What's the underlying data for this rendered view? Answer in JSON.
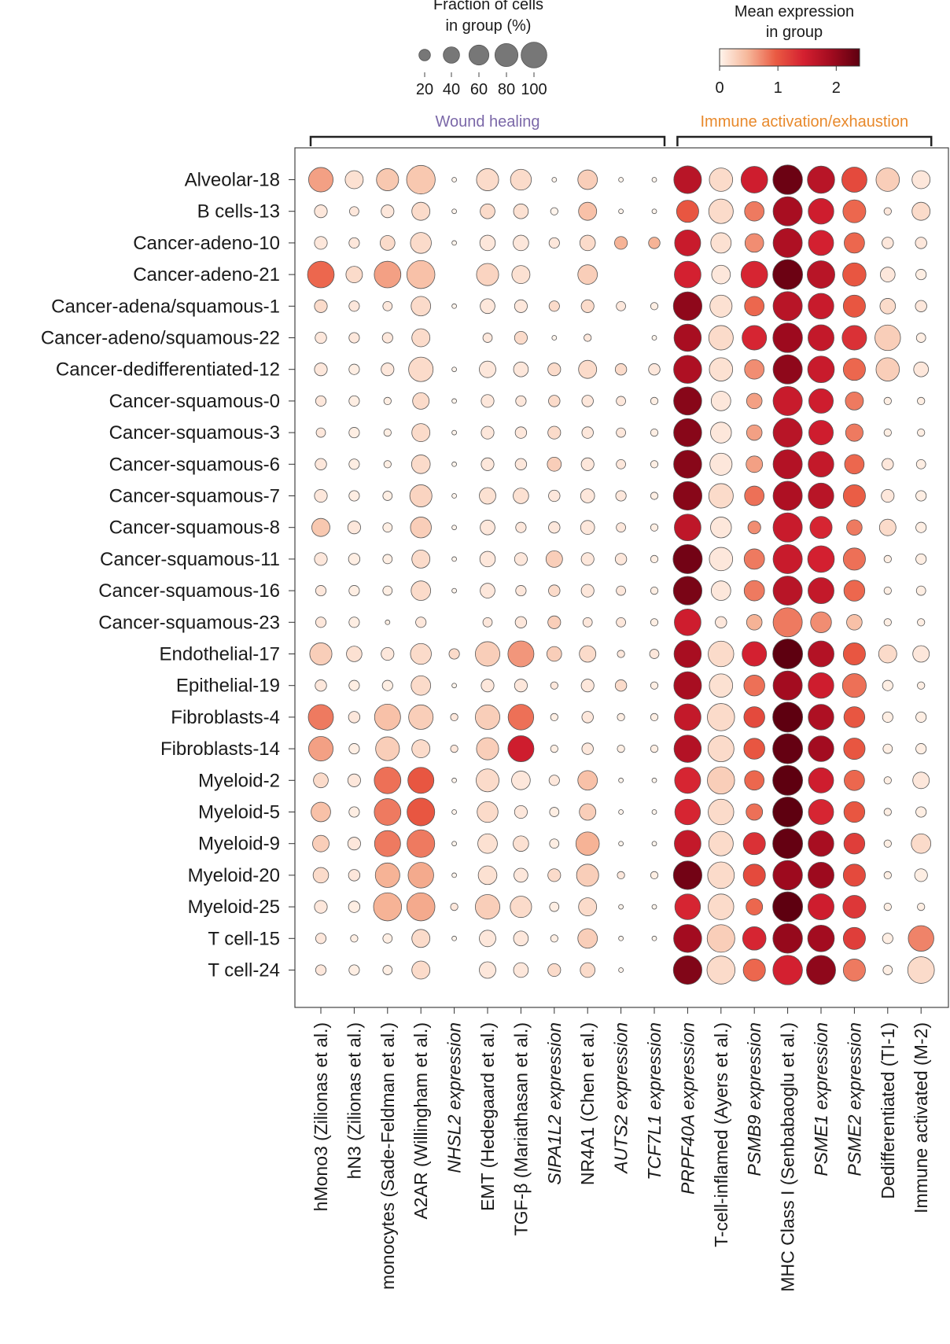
{
  "chart_data": {
    "type": "dotplot",
    "size_legend": {
      "title_line1": "Fraction of cells",
      "title_line2": "in group (%)",
      "values": [
        20,
        40,
        60,
        80,
        100
      ],
      "tick_labels": [
        "20",
        "40",
        "60",
        "80",
        "100"
      ]
    },
    "color_legend": {
      "title_line1": "Mean expression",
      "title_line2": "in group",
      "range": [
        0,
        2.4
      ],
      "ticks": [
        0,
        1,
        2
      ],
      "tick_labels": [
        "0",
        "1",
        "2"
      ],
      "colors": [
        "#fff4ec",
        "#f6b79a",
        "#ea5b43",
        "#d42030",
        "#a10b1f",
        "#5e0010"
      ]
    },
    "groups": [
      {
        "label": "Wound healing",
        "color": "#7b68a8",
        "start": 0,
        "end": 10
      },
      {
        "label": "Immune activation/exhaustion",
        "color": "#e8892b",
        "start": 11,
        "end": 18
      }
    ],
    "columns": [
      {
        "label": "hMono3 (Zilionas et al.)",
        "italic": false
      },
      {
        "label": "hN3 (Zilionas et al.)",
        "italic": false
      },
      {
        "label": "monocytes (Sade-Feldman et al.)",
        "italic": false
      },
      {
        "label": "A2AR (Willingham et al.)",
        "italic": false
      },
      {
        "label": "NHSL2 expression",
        "italic": true
      },
      {
        "label": "EMT (Hedegaard et al.)",
        "italic": false
      },
      {
        "label": "TGF-β (Mariathasan et al.)",
        "italic": false
      },
      {
        "label": "SIPA1L2 expression",
        "italic": true
      },
      {
        "label": "NR4A1 (Chen et al.)",
        "italic": false
      },
      {
        "label": "AUTS2 expression",
        "italic": true
      },
      {
        "label": "TCF7L1 expression",
        "italic": true
      },
      {
        "label": "PRPF40A expression",
        "italic": true
      },
      {
        "label": "T-cell-inflamed (Ayers et al.)",
        "italic": false
      },
      {
        "label": "PSMB9 expression",
        "italic": true
      },
      {
        "label": "MHC Class I (Senbabaoglu et al.)",
        "italic": false
      },
      {
        "label": "PSME1 expression",
        "italic": true
      },
      {
        "label": "PSME2 expression",
        "italic": true
      },
      {
        "label": "Dedifferentiated (TI-1)",
        "italic": false
      },
      {
        "label": "Immune activated (M-2)",
        "italic": false
      }
    ],
    "rows": [
      {
        "label": "Alveolar-18",
        "size": [
          55,
          30,
          45,
          75,
          2,
          45,
          40,
          2,
          35,
          2,
          2,
          70,
          50,
          65,
          80,
          68,
          58,
          50,
          30
        ],
        "expr": [
          0.6,
          0.15,
          0.35,
          0.35,
          0,
          0.2,
          0.2,
          0,
          0.3,
          0,
          0,
          1.7,
          0.2,
          1.5,
          2.3,
          1.7,
          1.1,
          0.3,
          0.1
        ]
      },
      {
        "label": "B cells-13",
        "size": [
          15,
          8,
          15,
          30,
          2,
          20,
          20,
          5,
          30,
          2,
          2,
          45,
          55,
          35,
          78,
          60,
          48,
          5,
          30
        ],
        "expr": [
          0.1,
          0.1,
          0.1,
          0.2,
          0,
          0.2,
          0.15,
          0,
          0.4,
          0,
          0,
          1.0,
          0.2,
          0.8,
          1.85,
          1.5,
          0.9,
          0.1,
          0.2
        ]
      },
      {
        "label": "Cancer-adeno-10",
        "size": [
          15,
          10,
          20,
          40,
          2,
          22,
          22,
          10,
          22,
          15,
          12,
          62,
          38,
          32,
          78,
          58,
          38,
          12,
          12
        ],
        "expr": [
          0.1,
          0.1,
          0.2,
          0.2,
          0,
          0.1,
          0.1,
          0.1,
          0.2,
          0.5,
          0.5,
          1.55,
          0.15,
          0.7,
          1.8,
          1.45,
          0.9,
          0.1,
          0.1
        ]
      },
      {
        "label": "Cancer-adeno-21",
        "size": [
          65,
          25,
          65,
          72,
          0,
          45,
          30,
          0,
          35,
          0,
          0,
          65,
          32,
          65,
          82,
          70,
          50,
          20,
          10
        ],
        "expr": [
          0.9,
          0.2,
          0.6,
          0.4,
          0,
          0.25,
          0.15,
          0,
          0.3,
          0,
          0,
          1.45,
          0.1,
          1.4,
          2.3,
          1.7,
          1.0,
          0.1,
          0.05
        ]
      },
      {
        "label": "Cancer-adena/squamous-1",
        "size": [
          15,
          10,
          8,
          35,
          2,
          20,
          15,
          10,
          15,
          8,
          5,
          75,
          45,
          35,
          78,
          60,
          45,
          22,
          12
        ],
        "expr": [
          0.2,
          0.1,
          0.1,
          0.2,
          0,
          0.1,
          0.1,
          0.2,
          0.2,
          0.1,
          0.05,
          2.05,
          0.15,
          0.9,
          1.7,
          1.55,
          1.0,
          0.2,
          0.1
        ]
      },
      {
        "label": "Cancer-adeno/squamous-22",
        "size": [
          12,
          10,
          10,
          30,
          0,
          8,
          15,
          2,
          5,
          0,
          2,
          68,
          55,
          55,
          80,
          62,
          55,
          60,
          8
        ],
        "expr": [
          0.1,
          0.1,
          0.1,
          0.2,
          0,
          0.1,
          0.2,
          0,
          0.1,
          0,
          0,
          1.85,
          0.2,
          1.4,
          1.95,
          1.6,
          1.3,
          0.3,
          0.05
        ]
      },
      {
        "label": "Cancer-dedifferentiated-12",
        "size": [
          15,
          10,
          15,
          55,
          2,
          25,
          20,
          15,
          30,
          12,
          12,
          72,
          50,
          35,
          78,
          65,
          45,
          50,
          20
        ],
        "expr": [
          0.1,
          0.05,
          0.1,
          0.2,
          0,
          0.1,
          0.1,
          0.2,
          0.2,
          0.2,
          0.1,
          1.8,
          0.15,
          0.7,
          2.05,
          1.55,
          0.9,
          0.3,
          0.1
        ]
      },
      {
        "label": "Cancer-squamous-0",
        "size": [
          10,
          10,
          5,
          25,
          2,
          15,
          10,
          12,
          12,
          8,
          5,
          72,
          35,
          22,
          78,
          55,
          30,
          5,
          5
        ],
        "expr": [
          0.1,
          0.05,
          0.05,
          0.2,
          0,
          0.1,
          0.1,
          0.2,
          0.1,
          0.1,
          0.05,
          2.1,
          0.1,
          0.6,
          1.55,
          1.5,
          0.8,
          0.05,
          0.05
        ]
      },
      {
        "label": "Cancer-squamous-3",
        "size": [
          8,
          10,
          5,
          30,
          2,
          15,
          12,
          15,
          12,
          8,
          5,
          72,
          40,
          22,
          78,
          55,
          28,
          5,
          5
        ],
        "expr": [
          0.1,
          0.05,
          0.05,
          0.2,
          0,
          0.1,
          0.1,
          0.2,
          0.1,
          0.1,
          0.05,
          2.1,
          0.1,
          0.6,
          1.7,
          1.5,
          0.8,
          0.05,
          0.05
        ]
      },
      {
        "label": "Cancer-squamous-6",
        "size": [
          12,
          10,
          5,
          32,
          2,
          15,
          12,
          18,
          15,
          8,
          5,
          72,
          45,
          25,
          78,
          60,
          35,
          12,
          8
        ],
        "expr": [
          0.1,
          0.05,
          0.05,
          0.2,
          0,
          0.1,
          0.1,
          0.3,
          0.1,
          0.1,
          0.05,
          2.1,
          0.1,
          0.6,
          1.75,
          1.6,
          0.9,
          0.1,
          0.05
        ]
      },
      {
        "label": "Cancer-squamous-7",
        "size": [
          15,
          10,
          8,
          45,
          2,
          25,
          22,
          12,
          18,
          10,
          5,
          75,
          55,
          35,
          78,
          60,
          45,
          15,
          10
        ],
        "expr": [
          0.1,
          0.05,
          0.05,
          0.25,
          0,
          0.15,
          0.15,
          0.1,
          0.1,
          0.1,
          0.05,
          2.1,
          0.2,
          0.85,
          1.8,
          1.7,
          0.95,
          0.1,
          0.05
        ]
      },
      {
        "label": "Cancer-squamous-8",
        "size": [
          30,
          15,
          8,
          40,
          2,
          20,
          10,
          12,
          18,
          8,
          5,
          65,
          40,
          15,
          78,
          45,
          22,
          25,
          10
        ],
        "expr": [
          0.35,
          0.1,
          0.05,
          0.3,
          0,
          0.1,
          0.1,
          0.1,
          0.1,
          0.1,
          0.05,
          1.65,
          0.1,
          0.7,
          1.55,
          1.4,
          0.8,
          0.2,
          0.05
        ]
      },
      {
        "label": "Cancer-squamous-11",
        "size": [
          15,
          12,
          8,
          30,
          2,
          22,
          15,
          25,
          15,
          12,
          5,
          78,
          50,
          38,
          78,
          65,
          45,
          5,
          10
        ],
        "expr": [
          0.1,
          0.05,
          0.05,
          0.2,
          0,
          0.1,
          0.1,
          0.3,
          0.1,
          0.1,
          0.05,
          2.25,
          0.1,
          0.8,
          1.55,
          1.45,
          0.85,
          0.05,
          0.05
        ]
      },
      {
        "label": "Cancer-squamous-16",
        "size": [
          10,
          10,
          8,
          35,
          2,
          20,
          10,
          12,
          15,
          8,
          5,
          75,
          35,
          38,
          78,
          62,
          40,
          5,
          8
        ],
        "expr": [
          0.1,
          0.05,
          0.05,
          0.2,
          0,
          0.1,
          0.1,
          0.2,
          0.1,
          0.1,
          0.05,
          2.2,
          0.1,
          0.8,
          1.7,
          1.6,
          0.9,
          0.05,
          0.05
        ]
      },
      {
        "label": "Cancer-squamous-23",
        "size": [
          10,
          10,
          2,
          10,
          0,
          8,
          12,
          15,
          8,
          8,
          5,
          65,
          12,
          22,
          78,
          40,
          22,
          5,
          5
        ],
        "expr": [
          0.1,
          0.05,
          0.05,
          0.1,
          0,
          0.1,
          0.1,
          0.3,
          0.1,
          0.1,
          0.05,
          1.5,
          0.1,
          0.5,
          0.8,
          0.7,
          0.4,
          0.05,
          0.05
        ]
      },
      {
        "label": "Endothelial-17",
        "size": [
          45,
          22,
          15,
          40,
          10,
          55,
          62,
          20,
          25,
          5,
          8,
          68,
          60,
          55,
          82,
          62,
          45,
          30,
          25
        ],
        "expr": [
          0.3,
          0.15,
          0.1,
          0.2,
          0.2,
          0.3,
          0.65,
          0.3,
          0.2,
          0.1,
          0.1,
          1.85,
          0.2,
          1.45,
          2.6,
          1.75,
          1.0,
          0.2,
          0.1
        ]
      },
      {
        "label": "Epithelial-19",
        "size": [
          12,
          10,
          10,
          35,
          2,
          15,
          15,
          5,
          15,
          12,
          5,
          70,
          50,
          40,
          78,
          60,
          52,
          10,
          5
        ],
        "expr": [
          0.1,
          0.05,
          0.05,
          0.2,
          0,
          0.1,
          0.1,
          0.1,
          0.1,
          0.2,
          0.05,
          1.85,
          0.15,
          0.85,
          1.9,
          1.5,
          0.85,
          0.05,
          0.05
        ]
      },
      {
        "label": "Fibroblasts-4",
        "size": [
          58,
          12,
          62,
          55,
          5,
          55,
          60,
          5,
          12,
          5,
          5,
          65,
          68,
          40,
          82,
          60,
          40,
          10,
          10
        ],
        "expr": [
          0.8,
          0.1,
          0.4,
          0.3,
          0.1,
          0.3,
          0.85,
          0.05,
          0.1,
          0.05,
          0.05,
          1.6,
          0.2,
          1.1,
          2.4,
          1.8,
          1.0,
          0.05,
          0.05
        ]
      },
      {
        "label": "Fibroblasts-14",
        "size": [
          55,
          10,
          52,
          30,
          5,
          45,
          62,
          5,
          12,
          5,
          5,
          68,
          62,
          40,
          82,
          60,
          42,
          8,
          10
        ],
        "expr": [
          0.6,
          0.05,
          0.3,
          0.2,
          0.1,
          0.3,
          1.5,
          0.05,
          0.1,
          0.05,
          0.05,
          1.75,
          0.2,
          1.0,
          2.35,
          1.9,
          1.0,
          0.05,
          0.05
        ]
      },
      {
        "label": "Myeloid-2",
        "size": [
          20,
          15,
          65,
          62,
          2,
          48,
          32,
          10,
          35,
          2,
          2,
          62,
          68,
          35,
          82,
          58,
          38,
          5,
          25
        ],
        "expr": [
          0.2,
          0.1,
          0.85,
          1.0,
          0,
          0.2,
          0.1,
          0.1,
          0.4,
          0,
          0,
          1.4,
          0.3,
          0.9,
          2.55,
          1.5,
          0.9,
          0.05,
          0.1
        ]
      },
      {
        "label": "Myeloid-5",
        "size": [
          35,
          10,
          65,
          70,
          2,
          40,
          15,
          8,
          25,
          2,
          2,
          60,
          60,
          25,
          82,
          58,
          40,
          5,
          10
        ],
        "expr": [
          0.4,
          0.05,
          0.8,
          1.0,
          0,
          0.2,
          0.1,
          0.05,
          0.3,
          0,
          0,
          1.4,
          0.2,
          0.85,
          2.5,
          1.4,
          1.0,
          0.05,
          0.05
        ]
      },
      {
        "label": "Myeloid-9",
        "size": [
          25,
          15,
          62,
          70,
          2,
          35,
          22,
          8,
          50,
          2,
          2,
          65,
          55,
          45,
          82,
          60,
          40,
          5,
          35
        ],
        "expr": [
          0.3,
          0.1,
          0.8,
          0.8,
          0,
          0.15,
          0.15,
          0.05,
          0.5,
          0,
          0,
          1.6,
          0.2,
          1.3,
          2.35,
          1.85,
          1.2,
          0.05,
          0.2
        ]
      },
      {
        "label": "Myeloid-20",
        "size": [
          22,
          12,
          55,
          60,
          2,
          32,
          18,
          15,
          45,
          5,
          5,
          75,
          65,
          45,
          80,
          62,
          45,
          5,
          15
        ],
        "expr": [
          0.2,
          0.1,
          0.5,
          0.55,
          0,
          0.15,
          0.1,
          0.2,
          0.3,
          0.1,
          0.05,
          2.25,
          0.2,
          1.1,
          1.95,
          1.95,
          1.1,
          0.05,
          0.05
        ]
      },
      {
        "label": "Myeloid-25",
        "size": [
          15,
          12,
          72,
          72,
          5,
          55,
          42,
          8,
          30,
          2,
          2,
          60,
          60,
          25,
          82,
          62,
          48,
          5,
          5
        ],
        "expr": [
          0.1,
          0.05,
          0.5,
          0.55,
          0.1,
          0.3,
          0.2,
          0.05,
          0.2,
          0,
          0,
          1.4,
          0.2,
          0.9,
          2.6,
          1.5,
          1.25,
          0.05,
          0.05
        ]
      },
      {
        "label": "T cell-15",
        "size": [
          10,
          5,
          8,
          30,
          2,
          25,
          20,
          5,
          35,
          2,
          2,
          72,
          70,
          50,
          80,
          65,
          45,
          10,
          60
        ],
        "expr": [
          0.1,
          0.05,
          0.05,
          0.2,
          0,
          0.1,
          0.1,
          0.05,
          0.3,
          0,
          0,
          1.9,
          0.3,
          1.4,
          2.0,
          1.9,
          1.2,
          0.05,
          0.75
        ]
      },
      {
        "label": "T cell-24",
        "size": [
          10,
          10,
          8,
          30,
          0,
          25,
          20,
          15,
          20,
          2,
          0,
          75,
          72,
          45,
          80,
          78,
          45,
          8,
          65
        ],
        "expr": [
          0.1,
          0.05,
          0.05,
          0.2,
          0,
          0.1,
          0.1,
          0.2,
          0.2,
          0,
          0,
          2.15,
          0.2,
          0.9,
          1.45,
          2.05,
          0.8,
          0.05,
          0.2
        ]
      }
    ]
  }
}
